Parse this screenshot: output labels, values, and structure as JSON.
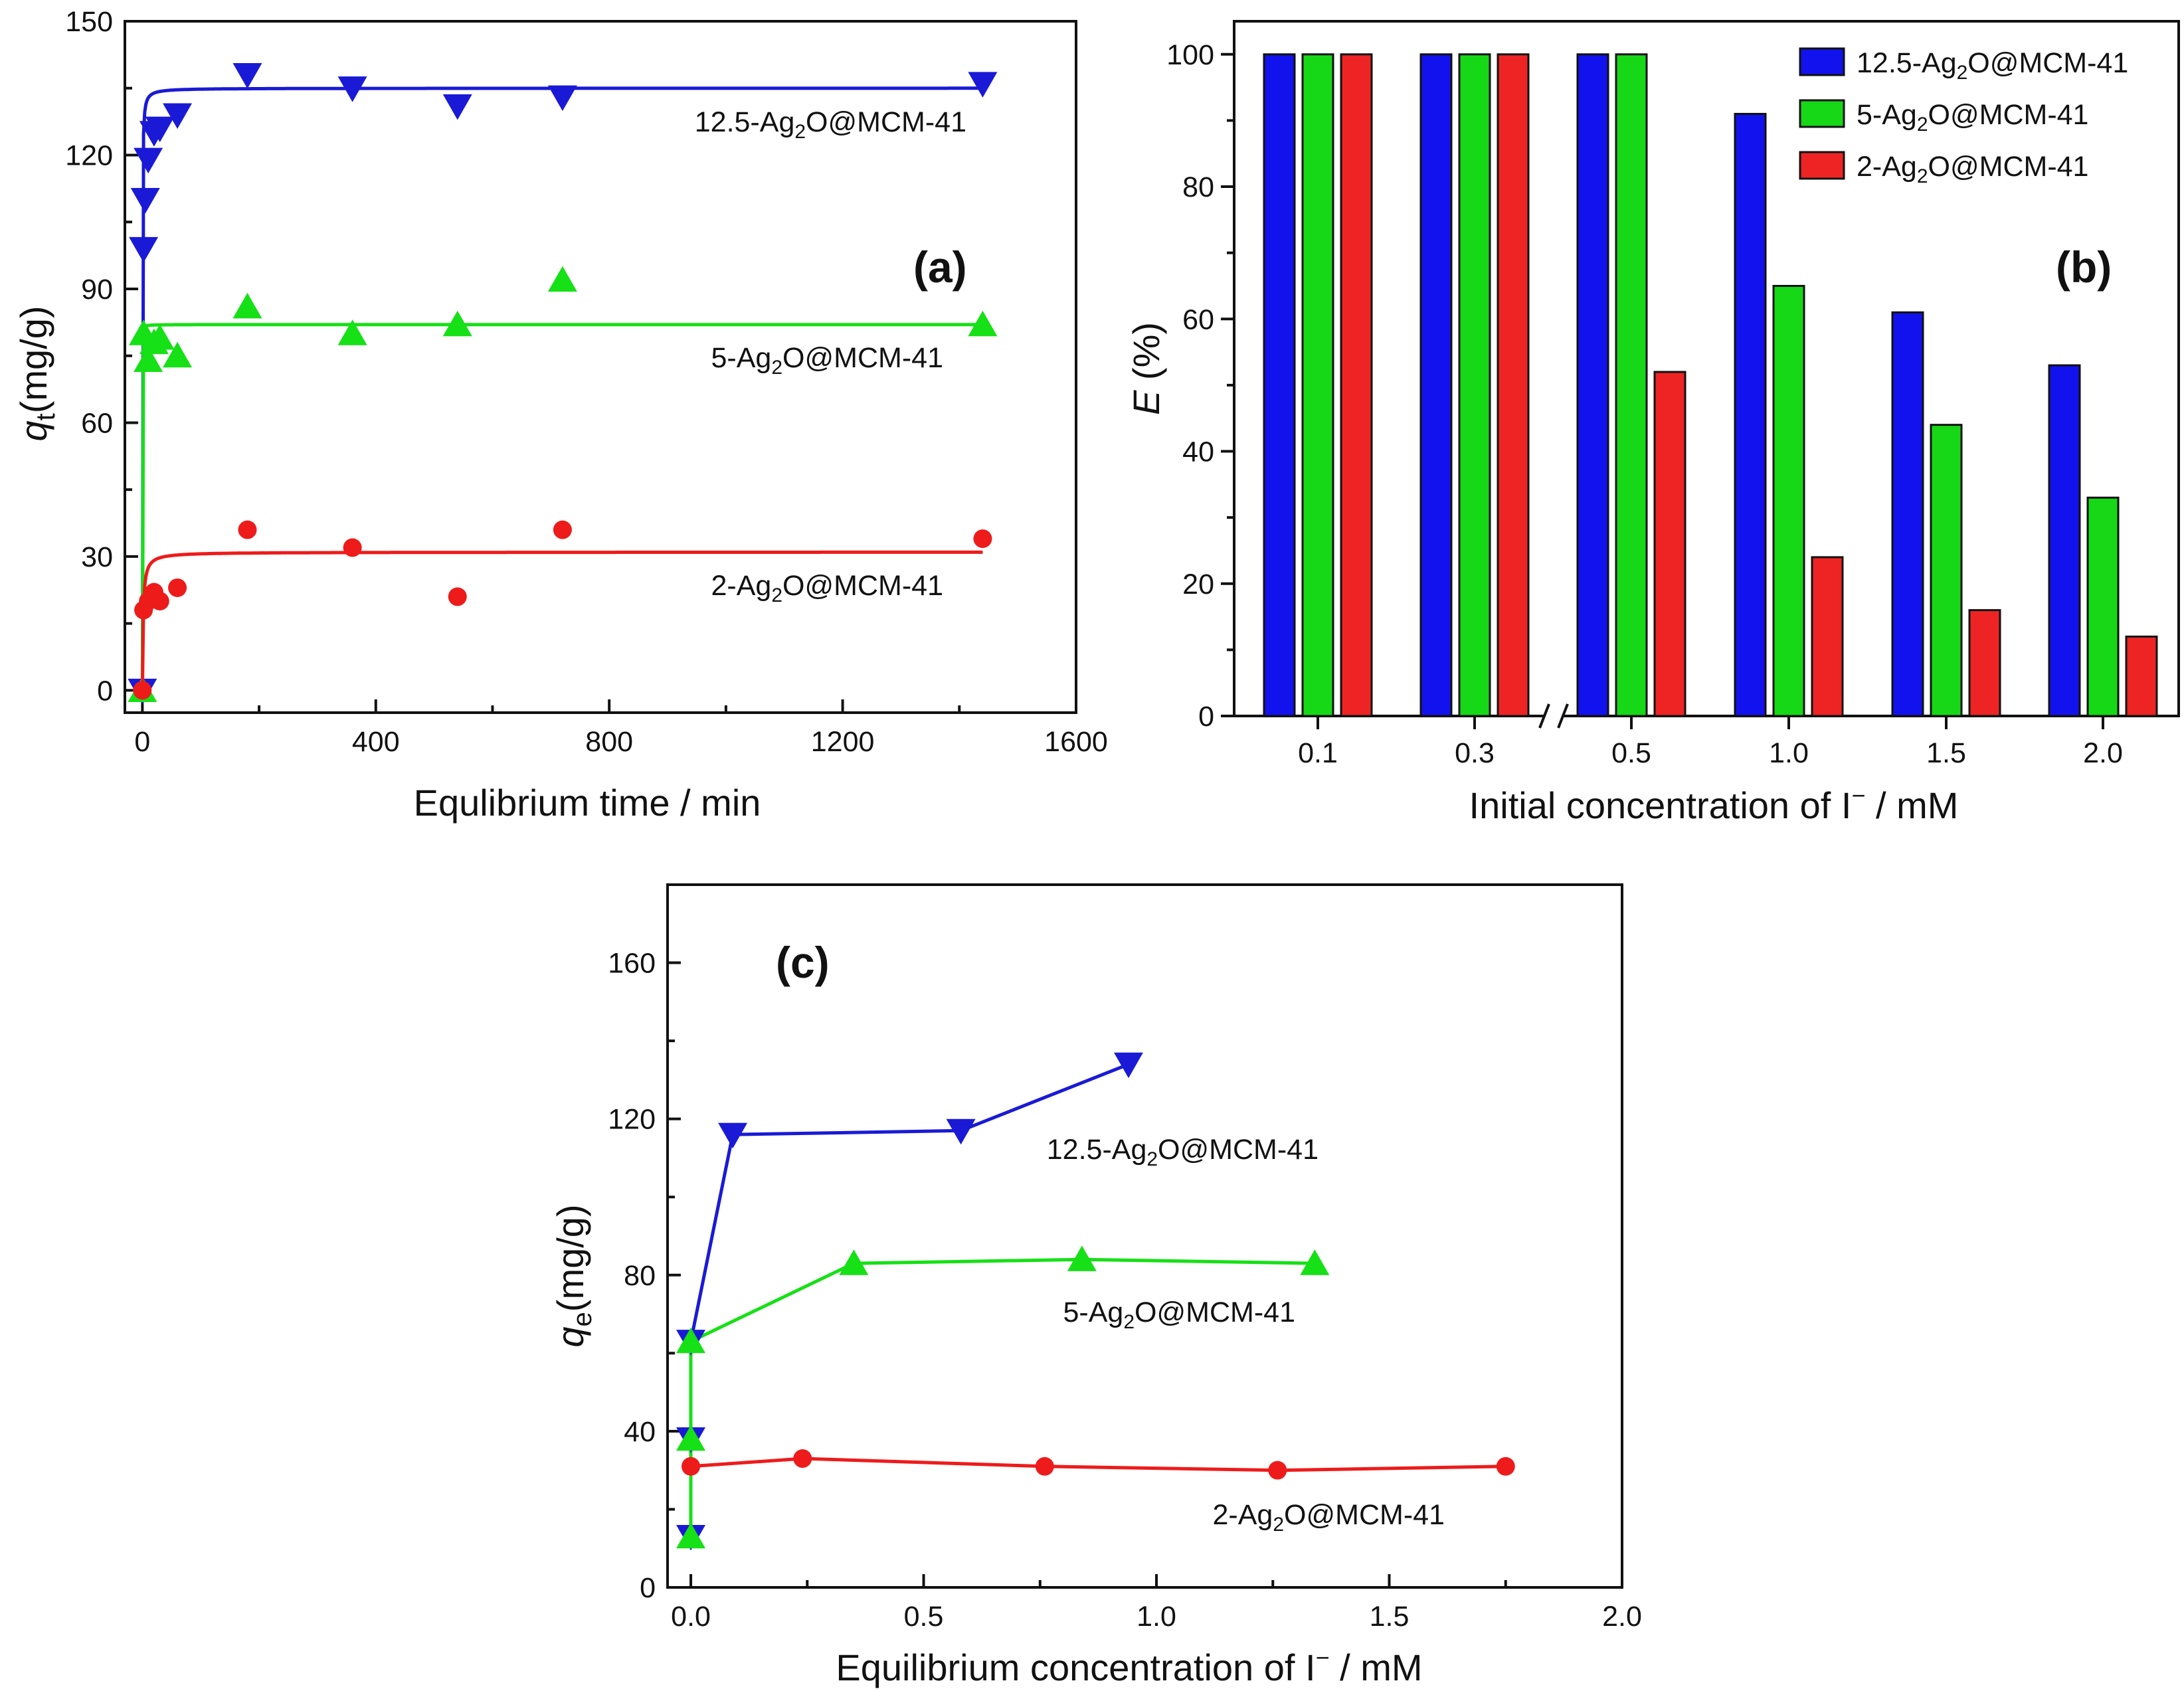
{
  "chart_data": [
    {
      "panel": "(a)",
      "type": "scatter",
      "xlabel": "Equlibrium time / min",
      "ylabel_main": "q",
      "ylabel_sub": "t",
      "ylabel_rest": "(mg/g)",
      "xlim": [
        -30,
        1600
      ],
      "ylim": [
        -5,
        150
      ],
      "xticks": [
        0,
        400,
        800,
        1200,
        1600
      ],
      "yticks": [
        0,
        30,
        60,
        90,
        120,
        150
      ],
      "series": [
        {
          "name": "12.5-Ag2O@MCM-41",
          "label_main": "12.5-Ag",
          "label_sub": "2",
          "label_rest": "O@MCM-41",
          "color": "#1a1ad6",
          "marker": "triangle-down",
          "x": [
            0,
            2,
            5,
            10,
            20,
            30,
            60,
            180,
            360,
            540,
            720,
            1440
          ],
          "y": [
            0,
            99,
            110,
            119,
            125,
            126,
            129,
            138,
            135,
            131,
            133,
            136
          ],
          "fit_qe": 135,
          "fit_k": 0.045
        },
        {
          "name": "5-Ag2O@MCM-41",
          "label_main": "5-Ag",
          "label_sub": "2",
          "label_rest": "O@MCM-41",
          "color": "#16e016",
          "marker": "triangle-up",
          "x": [
            0,
            2,
            10,
            20,
            30,
            60,
            180,
            360,
            540,
            720,
            1440
          ],
          "y": [
            0,
            80,
            74,
            78,
            79,
            75,
            86,
            80,
            82,
            92,
            82
          ],
          "fit_qe": 82,
          "fit_k": 0.5
        },
        {
          "name": "2-Ag2O@MCM-41",
          "label_main": "2-Ag",
          "label_sub": "2",
          "label_rest": "O@MCM-41",
          "color": "#ee1b1b",
          "marker": "circle",
          "x": [
            0,
            2,
            10,
            20,
            30,
            60,
            180,
            360,
            540,
            720,
            1440
          ],
          "y": [
            0,
            18,
            20,
            22,
            20,
            23,
            36,
            32,
            21,
            36,
            34
          ],
          "fit_qe": 31,
          "fit_k": 0.025
        }
      ]
    },
    {
      "panel": "(b)",
      "type": "bar",
      "xlabel": "Initial concentration of I",
      "xlabel_sup": "−",
      "xlabel_rest": " / mM",
      "ylabel_italic": "E",
      "ylabel_rest": " (%)",
      "categories": [
        "0.1",
        "0.3",
        "0.5",
        "1.0",
        "1.5",
        "2.0"
      ],
      "ylim": [
        0,
        105
      ],
      "yticks": [
        0,
        20,
        40,
        60,
        80,
        100
      ],
      "axis_break": "between 0.3 and 0.5",
      "legend_position": "top-right",
      "series": [
        {
          "name": "12.5-Ag2O@MCM-41",
          "label_main": "12.5-Ag",
          "label_sub": "2",
          "label_rest": "O@MCM-41",
          "color": "#1212ee",
          "values": [
            100,
            100,
            100,
            91,
            61,
            53
          ]
        },
        {
          "name": "5-Ag2O@MCM-41",
          "label_main": "5-Ag",
          "label_sub": "2",
          "label_rest": "O@MCM-41",
          "color": "#16d816",
          "values": [
            100,
            100,
            100,
            65,
            44,
            33
          ]
        },
        {
          "name": "2-Ag2O@MCM-41",
          "label_main": "2-Ag",
          "label_sub": "2",
          "label_rest": "O@MCM-41",
          "color": "#ee2424",
          "values": [
            100,
            100,
            52,
            24,
            16,
            12
          ]
        }
      ]
    },
    {
      "panel": "(c)",
      "type": "line",
      "xlabel": "Equilibrium concentration of I",
      "xlabel_sup": "−",
      "xlabel_rest": " / mM",
      "ylabel_main": "q",
      "ylabel_sub": "e",
      "ylabel_rest": "(mg/g)",
      "xlim": [
        -0.05,
        2.0
      ],
      "ylim": [
        0,
        180
      ],
      "xticks": [
        "0.0",
        "0.5",
        "1.0",
        "1.5",
        "2.0"
      ],
      "yticks": [
        0,
        40,
        80,
        120,
        160
      ],
      "series": [
        {
          "name": "12.5-Ag2O@MCM-41",
          "label_main": "12.5-Ag",
          "label_sub": "2",
          "label_rest": "O@MCM-41",
          "color": "#1a1ad6",
          "marker": "triangle-down",
          "x": [
            0,
            0,
            0,
            0.09,
            0.58,
            0.94
          ],
          "y": [
            13,
            38,
            63,
            116,
            117,
            134
          ]
        },
        {
          "name": "5-Ag2O@MCM-41",
          "label_main": "5-Ag",
          "label_sub": "2",
          "label_rest": "O@MCM-41",
          "color": "#16e016",
          "marker": "triangle-up",
          "x": [
            0,
            0,
            0,
            0.35,
            0.84,
            1.34
          ],
          "y": [
            13,
            38,
            63,
            83,
            84,
            83
          ]
        },
        {
          "name": "2-Ag2O@MCM-41",
          "label_main": "2-Ag",
          "label_sub": "2",
          "label_rest": "O@MCM-41",
          "color": "#ee1b1b",
          "marker": "circle",
          "x": [
            0,
            0.24,
            0.76,
            1.26,
            1.75
          ],
          "y": [
            31,
            33,
            31,
            30,
            31
          ]
        }
      ]
    }
  ]
}
